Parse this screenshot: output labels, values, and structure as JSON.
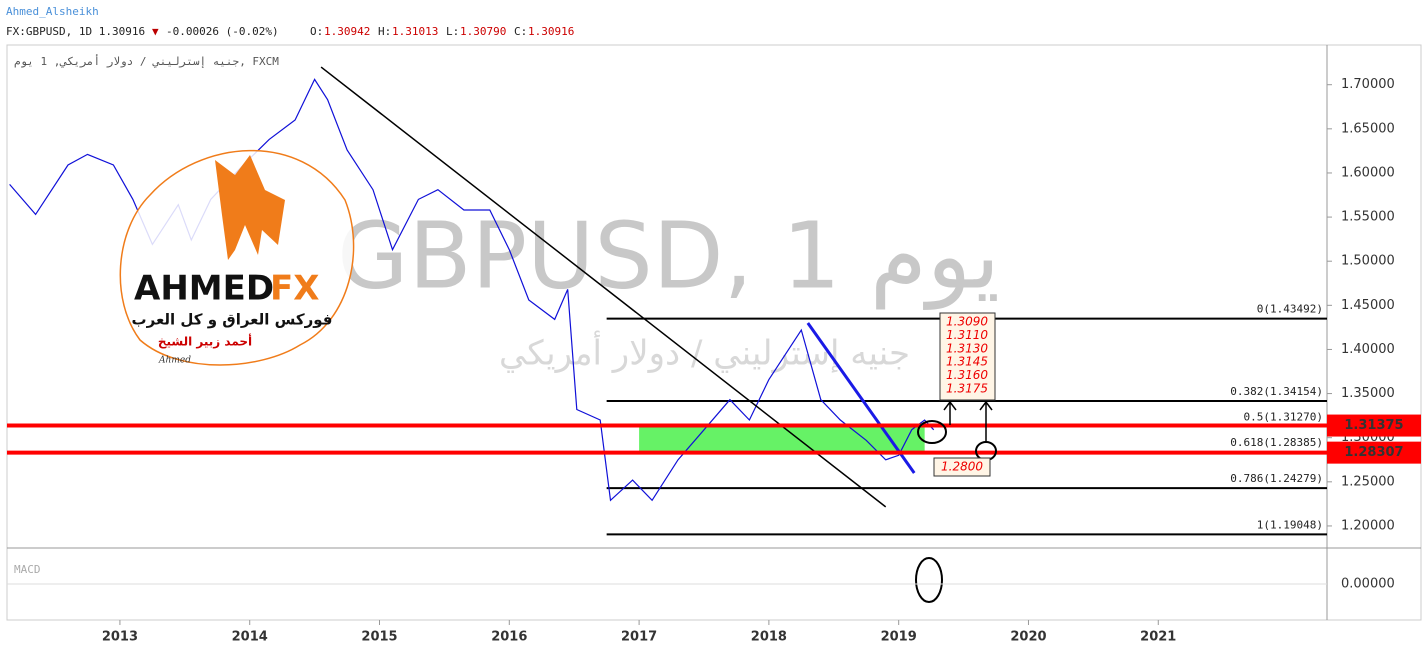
{
  "header": {
    "author": "Ahmed_Alsheikh",
    "symbol": "FX:GBPUSD, 1D 1.30916",
    "arrow": "▼",
    "change": "-0.00026 (-0.02%)",
    "ohlc": [
      {
        "label": "O:",
        "value": "1.30942"
      },
      {
        "label": "H:",
        "value": "1.31013"
      },
      {
        "label": "L:",
        "value": "1.30790"
      },
      {
        "label": "C:",
        "value": "1.30916"
      }
    ]
  },
  "logo": {
    "title_a": "AHMED",
    "title_b": "FX",
    "line1": "فوركس العراق و كل العرب",
    "line2": "أحمد زبير الشيخ",
    "signature": "Ahmed"
  },
  "chart_data": {
    "type": "line",
    "subtitle": "جنيه إسترليني / دولار أمريكي, 1 يوم, FXCM",
    "watermark": "GBPUSD, 1 يوم",
    "watermark_sub": "جنيه إسترليني / دولار أمريكي",
    "x": [
      2012.15,
      2012.35,
      2012.6,
      2012.75,
      2012.95,
      2013.1,
      2013.25,
      2013.45,
      2013.55,
      2013.7,
      2013.95,
      2014.15,
      2014.35,
      2014.5,
      2014.6,
      2014.75,
      2014.95,
      2015.1,
      2015.3,
      2015.45,
      2015.65,
      2015.85,
      2016.0,
      2016.15,
      2016.35,
      2016.45,
      2016.52,
      2016.7,
      2016.78,
      2016.95,
      2017.1,
      2017.3,
      2017.5,
      2017.7,
      2017.85,
      2018.0,
      2018.25,
      2018.4,
      2018.55,
      2018.75,
      2018.9,
      2019.0,
      2019.1,
      2019.2,
      2019.27
    ],
    "series": [
      {
        "color": "#1010d8",
        "values": [
          1.587,
          1.553,
          1.609,
          1.621,
          1.609,
          1.57,
          1.519,
          1.564,
          1.524,
          1.57,
          1.609,
          1.638,
          1.66,
          1.706,
          1.683,
          1.626,
          1.581,
          1.513,
          1.57,
          1.581,
          1.558,
          1.558,
          1.513,
          1.456,
          1.434,
          1.468,
          1.332,
          1.32,
          1.229,
          1.252,
          1.229,
          1.275,
          1.309,
          1.343,
          1.32,
          1.366,
          1.422,
          1.343,
          1.32,
          1.297,
          1.275,
          1.28,
          1.309,
          1.32,
          1.309
        ]
      }
    ],
    "xlim": [
      2012.13,
      2022.3
    ],
    "xticks": [
      2013,
      2014,
      2015,
      2016,
      2017,
      2018,
      2019,
      2020,
      2021
    ],
    "ylim": [
      1.175,
      1.745
    ],
    "yticks": [
      {
        "value": 1.2,
        "label": "1.20000"
      },
      {
        "value": 1.25,
        "label": "1.25000"
      },
      {
        "value": 1.3,
        "label": "1.30000"
      },
      {
        "value": 1.35,
        "label": "1.35000"
      },
      {
        "value": 1.4,
        "label": "1.40000"
      },
      {
        "value": 1.45,
        "label": "1.45000"
      },
      {
        "value": 1.5,
        "label": "1.50000"
      },
      {
        "value": 1.55,
        "label": "1.55000"
      },
      {
        "value": 1.6,
        "label": "1.60000"
      },
      {
        "value": 1.65,
        "label": "1.65000"
      },
      {
        "value": 1.7,
        "label": "1.70000"
      }
    ],
    "fib_levels": [
      {
        "value": 1.43492,
        "label": "0(1.43492)"
      },
      {
        "value": 1.34154,
        "label": "0.382(1.34154)"
      },
      {
        "value": 1.3127,
        "label": "0.5(1.31270)"
      },
      {
        "value": 1.28385,
        "label": "0.618(1.28385)"
      },
      {
        "value": 1.24279,
        "label": "0.786(1.24279)"
      },
      {
        "value": 1.19048,
        "label": "1(1.19048)"
      }
    ],
    "fib_start": 2016.75,
    "price_lines": [
      {
        "value": 1.31375,
        "color": "#ff0000"
      },
      {
        "value": 1.28307,
        "color": "#ff0000"
      }
    ],
    "zone": {
      "x": [
        2017.0,
        2019.2
      ],
      "y": [
        1.28307,
        1.31375
      ],
      "color": "#33ee33"
    },
    "trendlines": [
      {
        "x": [
          2014.55,
          2018.9
        ],
        "y": [
          1.72,
          1.2216
        ],
        "color": "#000000"
      },
      {
        "x": [
          2018.3,
          2019.12
        ],
        "y": [
          1.43,
          1.26
        ],
        "color": "#1a1ae6"
      }
    ],
    "targets": [
      "1.3090",
      "1.3110",
      "1.3130",
      "1.3145",
      "1.3160",
      "1.3175"
    ],
    "support_label": "1.2800",
    "macd": {
      "label": "MACD",
      "ylim": [
        -0.03,
        0.03
      ],
      "yticks": [
        {
          "value": 0,
          "label": "0.00000"
        }
      ]
    }
  }
}
